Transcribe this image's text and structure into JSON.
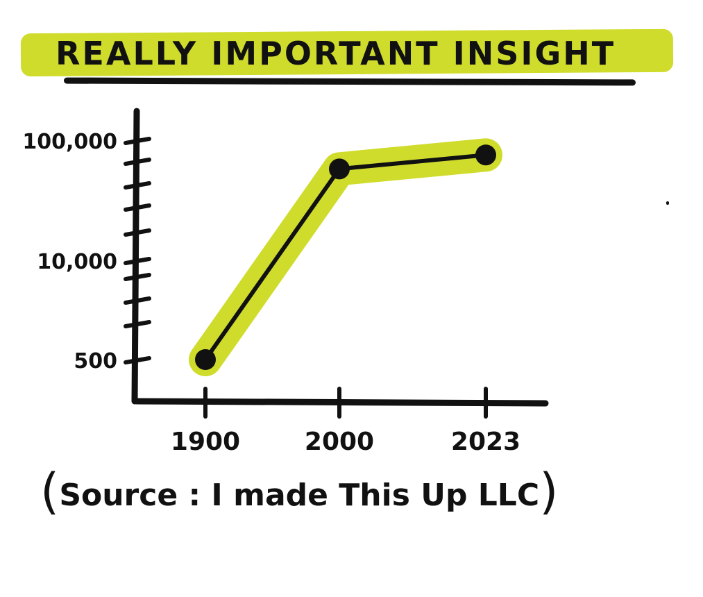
{
  "title": "REALLY IMPORTANT INSIGHT",
  "source_text": "Source : I made This Up LLC",
  "colors": {
    "highlight": "#cfdc2c",
    "ink": "#111111",
    "background": "#ffffff"
  },
  "chart_data": {
    "type": "line",
    "title": "REALLY IMPORTANT INSIGHT",
    "xlabel": "",
    "ylabel": "",
    "x_ticks": [
      "1900",
      "2000",
      "2023"
    ],
    "y_ticks": [
      "500",
      "10,000",
      "100,000"
    ],
    "y_scale": "log",
    "grid": false,
    "series": [
      {
        "x": [
          1900,
          2000,
          2023
        ],
        "y": [
          500,
          50000,
          70000
        ],
        "highlighted": true
      }
    ]
  }
}
